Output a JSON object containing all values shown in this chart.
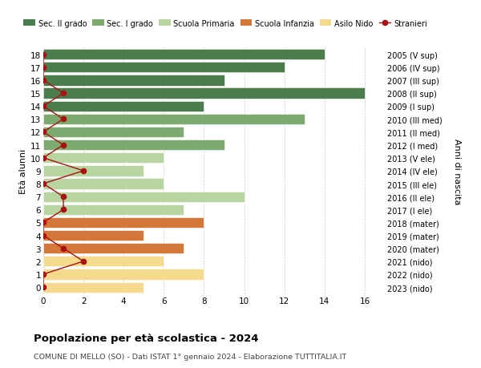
{
  "ages": [
    18,
    17,
    16,
    15,
    14,
    13,
    12,
    11,
    10,
    9,
    8,
    7,
    6,
    5,
    4,
    3,
    2,
    1,
    0
  ],
  "right_labels": [
    "2005 (V sup)",
    "2006 (IV sup)",
    "2007 (III sup)",
    "2008 (II sup)",
    "2009 (I sup)",
    "2010 (III med)",
    "2011 (II med)",
    "2012 (I med)",
    "2013 (V ele)",
    "2014 (IV ele)",
    "2015 (III ele)",
    "2016 (II ele)",
    "2017 (I ele)",
    "2018 (mater)",
    "2019 (mater)",
    "2020 (mater)",
    "2021 (nido)",
    "2022 (nido)",
    "2023 (nido)"
  ],
  "bar_values": [
    14,
    12,
    9,
    16,
    8,
    13,
    7,
    9,
    6,
    5,
    6,
    10,
    7,
    8,
    5,
    7,
    6,
    8,
    5
  ],
  "bar_colors": [
    "#4a7c4e",
    "#4a7c4e",
    "#4a7c4e",
    "#4a7c4e",
    "#4a7c4e",
    "#7daa6e",
    "#7daa6e",
    "#7daa6e",
    "#b8d4a0",
    "#b8d4a0",
    "#b8d4a0",
    "#b8d4a0",
    "#b8d4a0",
    "#d4783a",
    "#d4783a",
    "#d4783a",
    "#f5d98c",
    "#f5d98c",
    "#f5d98c"
  ],
  "stranieri_values": [
    0,
    0,
    0,
    1,
    0,
    1,
    0,
    1,
    0,
    2,
    0,
    1,
    1,
    0,
    0,
    1,
    2,
    0,
    0
  ],
  "stranieri_color": "#aa1111",
  "legend_labels": [
    "Sec. II grado",
    "Sec. I grado",
    "Scuola Primaria",
    "Scuola Infanzia",
    "Asilo Nido",
    "Stranieri"
  ],
  "legend_colors": [
    "#4a7c4e",
    "#7daa6e",
    "#b8d4a0",
    "#d4783a",
    "#f5d98c",
    "#aa1111"
  ],
  "ylabel": "Età alunni",
  "right_ylabel": "Anni di nascita",
  "title": "Popolazione per età scolastica - 2024",
  "subtitle": "COMUNE DI MELLO (SO) - Dati ISTAT 1° gennaio 2024 - Elaborazione TUTTITALIA.IT",
  "xlim": [
    0,
    17
  ],
  "xticks": [
    0,
    2,
    4,
    6,
    8,
    10,
    12,
    14,
    16
  ],
  "background_color": "#ffffff",
  "grid_color": "#cccccc"
}
